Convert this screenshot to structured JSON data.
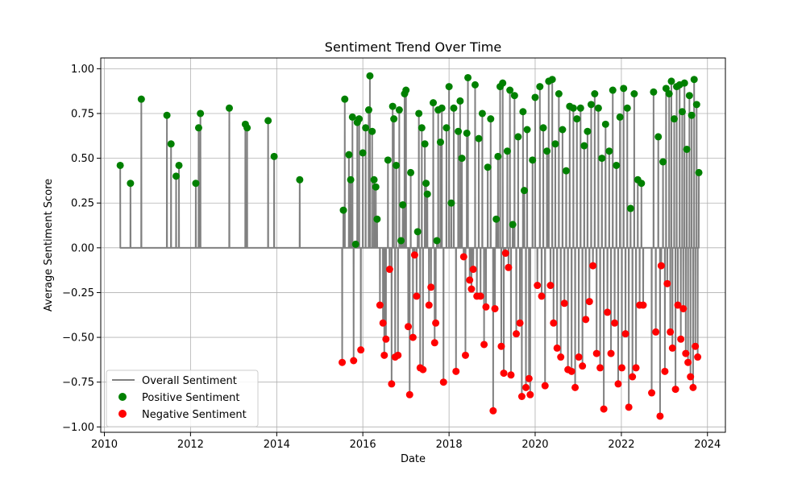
{
  "chart_data": {
    "type": "line",
    "title": "Sentiment Trend Over Time",
    "xlabel": "Date",
    "ylabel": "Average Sentiment Score",
    "xlim": [
      "2009-12-01",
      "2024-06-01"
    ],
    "ylim": [
      -1.03,
      1.06
    ],
    "x_ticks": [
      "2010-01-01",
      "2012-01-01",
      "2014-01-01",
      "2016-01-01",
      "2018-01-01",
      "2020-01-01",
      "2022-01-01",
      "2024-01-01"
    ],
    "x_tick_labels": [
      "2010",
      "2012",
      "2014",
      "2016",
      "2018",
      "2020",
      "2022",
      "2024"
    ],
    "y_ticks": [
      1.0,
      0.75,
      0.5,
      0.25,
      0.0,
      -0.25,
      -0.5,
      -0.75,
      -1.0
    ],
    "y_tick_labels": [
      "1.00",
      "0.75",
      "0.50",
      "0.25",
      "0.00",
      "−0.25",
      "−0.50",
      "−0.75",
      "−1.00"
    ],
    "grid": true,
    "legend_position": "bottom-left",
    "colors": {
      "line": "#808080",
      "positive": "#008000",
      "negative": "#ff0000"
    },
    "series": [
      {
        "name": "Overall Sentiment",
        "kind": "line",
        "points": [
          [
            "2010-05-15",
            0.46
          ],
          [
            "2010-08-10",
            0.36
          ],
          [
            "2010-11-10",
            0.83
          ],
          [
            "2011-06-15",
            0.74
          ],
          [
            "2011-07-20",
            0.58
          ],
          [
            "2011-09-01",
            0.4
          ],
          [
            "2011-09-25",
            0.46
          ],
          [
            "2012-02-15",
            0.36
          ],
          [
            "2012-03-10",
            0.67
          ],
          [
            "2012-03-25",
            0.75
          ],
          [
            "2012-11-25",
            0.78
          ],
          [
            "2013-04-10",
            0.69
          ],
          [
            "2013-04-25",
            0.67
          ],
          [
            "2013-10-20",
            0.71
          ],
          [
            "2013-12-10",
            0.51
          ],
          [
            "2014-07-15",
            0.38
          ],
          [
            "2015-07-10",
            -0.64
          ],
          [
            "2015-07-20",
            0.21
          ],
          [
            "2015-08-01",
            0.83
          ],
          [
            "2015-09-05",
            0.52
          ],
          [
            "2015-09-20",
            0.38
          ],
          [
            "2015-10-05",
            0.73
          ],
          [
            "2015-10-15",
            -0.63
          ],
          [
            "2015-11-01",
            0.02
          ],
          [
            "2015-11-15",
            0.7
          ],
          [
            "2015-12-01",
            0.72
          ],
          [
            "2015-12-15",
            -0.57
          ],
          [
            "2016-01-01",
            0.53
          ],
          [
            "2016-01-25",
            0.67
          ],
          [
            "2016-02-20",
            0.77
          ],
          [
            "2016-03-01",
            0.96
          ],
          [
            "2016-03-20",
            0.65
          ],
          [
            "2016-04-05",
            0.38
          ],
          [
            "2016-04-20",
            0.34
          ],
          [
            "2016-05-01",
            0.16
          ],
          [
            "2016-05-25",
            -0.32
          ],
          [
            "2016-06-20",
            -0.42
          ],
          [
            "2016-07-01",
            -0.6
          ],
          [
            "2016-07-15",
            -0.51
          ],
          [
            "2016-08-01",
            0.49
          ],
          [
            "2016-08-15",
            -0.12
          ],
          [
            "2016-09-01",
            -0.76
          ],
          [
            "2016-09-10",
            0.79
          ],
          [
            "2016-09-20",
            0.72
          ],
          [
            "2016-10-01",
            -0.61
          ],
          [
            "2016-10-10",
            0.46
          ],
          [
            "2016-10-25",
            -0.6
          ],
          [
            "2016-11-05",
            0.77
          ],
          [
            "2016-11-20",
            0.04
          ],
          [
            "2016-12-05",
            0.24
          ],
          [
            "2016-12-20",
            0.86
          ],
          [
            "2017-01-01",
            0.88
          ],
          [
            "2017-01-20",
            -0.44
          ],
          [
            "2017-02-01",
            -0.82
          ],
          [
            "2017-02-10",
            0.42
          ],
          [
            "2017-03-01",
            -0.5
          ],
          [
            "2017-03-15",
            -0.04
          ],
          [
            "2017-04-01",
            -0.27
          ],
          [
            "2017-04-10",
            0.09
          ],
          [
            "2017-04-20",
            0.75
          ],
          [
            "2017-05-01",
            -0.67
          ],
          [
            "2017-05-15",
            0.67
          ],
          [
            "2017-05-25",
            -0.68
          ],
          [
            "2017-06-10",
            0.58
          ],
          [
            "2017-06-20",
            0.36
          ],
          [
            "2017-07-01",
            0.3
          ],
          [
            "2017-07-15",
            -0.32
          ],
          [
            "2017-08-01",
            -0.22
          ],
          [
            "2017-08-20",
            0.81
          ],
          [
            "2017-09-01",
            -0.53
          ],
          [
            "2017-09-10",
            -0.42
          ],
          [
            "2017-09-20",
            0.04
          ],
          [
            "2017-10-01",
            0.77
          ],
          [
            "2017-10-20",
            0.59
          ],
          [
            "2017-11-01",
            0.78
          ],
          [
            "2017-11-15",
            -0.75
          ],
          [
            "2017-12-10",
            0.67
          ],
          [
            "2018-01-01",
            0.9
          ],
          [
            "2018-01-20",
            0.25
          ],
          [
            "2018-02-10",
            0.78
          ],
          [
            "2018-03-01",
            -0.69
          ],
          [
            "2018-03-20",
            0.65
          ],
          [
            "2018-04-05",
            0.82
          ],
          [
            "2018-04-20",
            0.5
          ],
          [
            "2018-05-05",
            -0.05
          ],
          [
            "2018-05-20",
            -0.6
          ],
          [
            "2018-06-01",
            0.64
          ],
          [
            "2018-06-10",
            0.95
          ],
          [
            "2018-06-25",
            -0.18
          ],
          [
            "2018-07-10",
            -0.23
          ],
          [
            "2018-07-25",
            -0.12
          ],
          [
            "2018-08-10",
            0.91
          ],
          [
            "2018-08-25",
            -0.27
          ],
          [
            "2018-09-10",
            0.61
          ],
          [
            "2018-09-25",
            -0.27
          ],
          [
            "2018-10-10",
            0.75
          ],
          [
            "2018-10-25",
            -0.54
          ],
          [
            "2018-11-10",
            -0.33
          ],
          [
            "2018-11-25",
            0.45
          ],
          [
            "2018-12-20",
            0.72
          ],
          [
            "2019-01-10",
            -0.91
          ],
          [
            "2019-01-25",
            -0.34
          ],
          [
            "2019-02-05",
            0.16
          ],
          [
            "2019-02-20",
            0.51
          ],
          [
            "2019-03-10",
            0.9
          ],
          [
            "2019-03-20",
            -0.55
          ],
          [
            "2019-04-01",
            0.92
          ],
          [
            "2019-04-10",
            -0.7
          ],
          [
            "2019-04-25",
            -0.03
          ],
          [
            "2019-05-10",
            0.54
          ],
          [
            "2019-05-20",
            -0.11
          ],
          [
            "2019-06-01",
            0.88
          ],
          [
            "2019-06-10",
            -0.71
          ],
          [
            "2019-06-25",
            0.13
          ],
          [
            "2019-07-10",
            0.85
          ],
          [
            "2019-07-25",
            -0.48
          ],
          [
            "2019-08-10",
            0.62
          ],
          [
            "2019-08-25",
            -0.42
          ],
          [
            "2019-09-10",
            -0.83
          ],
          [
            "2019-09-20",
            0.76
          ],
          [
            "2019-10-01",
            0.32
          ],
          [
            "2019-10-15",
            -0.78
          ],
          [
            "2019-10-25",
            0.66
          ],
          [
            "2019-11-10",
            -0.73
          ],
          [
            "2019-11-20",
            -0.82
          ],
          [
            "2019-12-10",
            0.49
          ],
          [
            "2020-01-01",
            0.84
          ],
          [
            "2020-01-20",
            -0.21
          ],
          [
            "2020-02-10",
            0.9
          ],
          [
            "2020-02-25",
            -0.27
          ],
          [
            "2020-03-10",
            0.67
          ],
          [
            "2020-03-25",
            -0.77
          ],
          [
            "2020-04-10",
            0.54
          ],
          [
            "2020-04-25",
            0.93
          ],
          [
            "2020-05-10",
            -0.21
          ],
          [
            "2020-05-25",
            0.94
          ],
          [
            "2020-06-05",
            -0.42
          ],
          [
            "2020-06-20",
            0.58
          ],
          [
            "2020-07-05",
            -0.56
          ],
          [
            "2020-07-20",
            0.86
          ],
          [
            "2020-08-05",
            -0.61
          ],
          [
            "2020-08-20",
            0.66
          ],
          [
            "2020-09-05",
            -0.31
          ],
          [
            "2020-09-20",
            0.43
          ],
          [
            "2020-10-05",
            -0.68
          ],
          [
            "2020-10-20",
            0.79
          ],
          [
            "2020-11-05",
            -0.69
          ],
          [
            "2020-11-20",
            0.78
          ],
          [
            "2020-12-05",
            -0.78
          ],
          [
            "2020-12-20",
            0.72
          ],
          [
            "2021-01-05",
            -0.61
          ],
          [
            "2021-01-20",
            0.78
          ],
          [
            "2021-02-05",
            -0.66
          ],
          [
            "2021-02-20",
            0.57
          ],
          [
            "2021-03-05",
            -0.4
          ],
          [
            "2021-03-20",
            0.65
          ],
          [
            "2021-04-05",
            -0.3
          ],
          [
            "2021-04-20",
            0.8
          ],
          [
            "2021-05-05",
            -0.1
          ],
          [
            "2021-05-20",
            0.86
          ],
          [
            "2021-06-05",
            -0.59
          ],
          [
            "2021-06-20",
            0.78
          ],
          [
            "2021-07-05",
            -0.67
          ],
          [
            "2021-07-20",
            0.5
          ],
          [
            "2021-08-05",
            -0.9
          ],
          [
            "2021-08-20",
            0.69
          ],
          [
            "2021-09-05",
            -0.36
          ],
          [
            "2021-09-20",
            0.54
          ],
          [
            "2021-10-05",
            -0.59
          ],
          [
            "2021-10-20",
            0.88
          ],
          [
            "2021-11-05",
            -0.42
          ],
          [
            "2021-11-20",
            0.46
          ],
          [
            "2021-12-05",
            -0.76
          ],
          [
            "2021-12-20",
            0.73
          ],
          [
            "2022-01-05",
            -0.67
          ],
          [
            "2022-01-20",
            0.89
          ],
          [
            "2022-02-05",
            -0.48
          ],
          [
            "2022-02-20",
            0.78
          ],
          [
            "2022-03-05",
            -0.89
          ],
          [
            "2022-03-20",
            0.22
          ],
          [
            "2022-04-05",
            -0.72
          ],
          [
            "2022-04-20",
            0.86
          ],
          [
            "2022-05-05",
            -0.67
          ],
          [
            "2022-05-20",
            0.38
          ],
          [
            "2022-06-05",
            -0.32
          ],
          [
            "2022-06-20",
            0.36
          ],
          [
            "2022-07-05",
            -0.32
          ],
          [
            "2022-09-15",
            -0.81
          ],
          [
            "2022-10-01",
            0.87
          ],
          [
            "2022-10-20",
            -0.47
          ],
          [
            "2022-11-10",
            0.62
          ],
          [
            "2022-11-25",
            -0.94
          ],
          [
            "2022-12-05",
            -0.1
          ],
          [
            "2022-12-20",
            0.48
          ],
          [
            "2023-01-05",
            -0.69
          ],
          [
            "2023-01-15",
            0.89
          ],
          [
            "2023-01-25",
            -0.2
          ],
          [
            "2023-02-10",
            0.86
          ],
          [
            "2023-02-20",
            -0.47
          ],
          [
            "2023-03-01",
            0.93
          ],
          [
            "2023-03-10",
            -0.56
          ],
          [
            "2023-03-25",
            0.72
          ],
          [
            "2023-04-05",
            -0.79
          ],
          [
            "2023-04-15",
            0.9
          ],
          [
            "2023-04-25",
            -0.32
          ],
          [
            "2023-05-10",
            0.91
          ],
          [
            "2023-05-20",
            -0.51
          ],
          [
            "2023-06-01",
            0.76
          ],
          [
            "2023-06-10",
            -0.34
          ],
          [
            "2023-06-20",
            0.92
          ],
          [
            "2023-07-01",
            -0.59
          ],
          [
            "2023-07-10",
            0.55
          ],
          [
            "2023-07-20",
            -0.64
          ],
          [
            "2023-08-01",
            0.85
          ],
          [
            "2023-08-10",
            -0.72
          ],
          [
            "2023-08-20",
            0.74
          ],
          [
            "2023-09-01",
            -0.78
          ],
          [
            "2023-09-10",
            0.94
          ],
          [
            "2023-09-20",
            -0.55
          ],
          [
            "2023-10-01",
            0.8
          ],
          [
            "2023-10-10",
            -0.61
          ],
          [
            "2023-10-20",
            0.42
          ]
        ]
      },
      {
        "name": "Positive Sentiment",
        "kind": "scatter",
        "filter": "positive"
      },
      {
        "name": "Negative Sentiment",
        "kind": "scatter",
        "filter": "negative"
      }
    ]
  }
}
